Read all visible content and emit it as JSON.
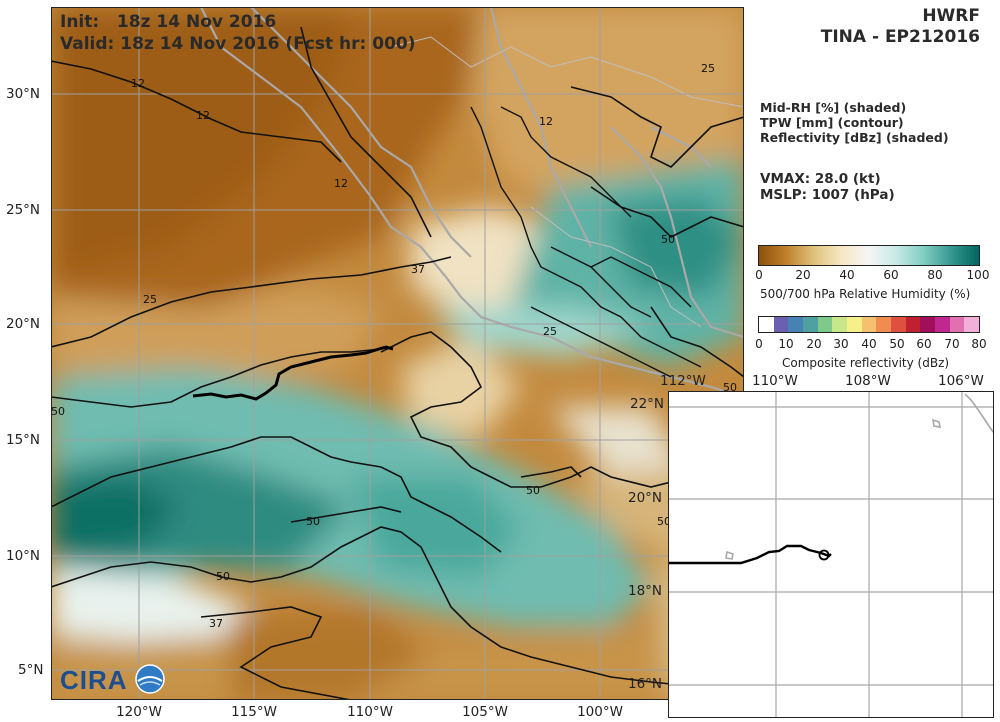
{
  "header": {
    "model": "HWRF",
    "storm": "TINA - EP212016",
    "init": "Init:   18z 14 Nov 2016",
    "valid": "Valid: 18z 14 Nov 2016 (Fcst hr: 000)"
  },
  "fields": {
    "line1": "Mid-RH [%] (shaded)",
    "line2": "TPW [mm] (contour)",
    "line3": "Reflectivity [dBz] (shaded)"
  },
  "storm_info": {
    "vmax": "VMAX:  28.0 (kt)",
    "mslp": "MSLP: 1007 (hPa)"
  },
  "rh_colorbar": {
    "ticks": [
      "0",
      "20",
      "40",
      "60",
      "80",
      "100"
    ],
    "title": "500/700 hPa Relative Humidity (%)",
    "colors": [
      "#8c510a",
      "#bf812d",
      "#dfc27d",
      "#f6e8c3",
      "#f5f5f5",
      "#c7eae5",
      "#80cdc1",
      "#35978f",
      "#01665e"
    ]
  },
  "refl_colorbar": {
    "ticks": [
      "0",
      "10",
      "20",
      "30",
      "40",
      "50",
      "60",
      "70",
      "80"
    ],
    "title": "Composite reflectivity (dBz)",
    "colors": [
      "#ffffff",
      "#6a5fb0",
      "#4682b4",
      "#4fa0a0",
      "#7fc98a",
      "#c8e68a",
      "#f5f08a",
      "#f5c070",
      "#f08c50",
      "#e05040",
      "#c02030",
      "#a0105a",
      "#c02890",
      "#e070b0",
      "#f0b0d8"
    ]
  },
  "main_map": {
    "lat_labels": [
      "30°N",
      "25°N",
      "20°N",
      "15°N",
      "10°N",
      "5°N"
    ],
    "lon_labels": [
      "120°W",
      "115°W",
      "110°W",
      "105°W",
      "100°W"
    ],
    "contour_labels": [
      "12",
      "12",
      "12",
      "12",
      "25",
      "25",
      "37",
      "50",
      "50",
      "50",
      "50",
      "37",
      "50",
      "50",
      "25",
      "50"
    ]
  },
  "inset_map": {
    "lon_labels": [
      "110°W",
      "108°W",
      "106°W"
    ],
    "lat_labels": [
      "20°N",
      "18°N",
      "16°N"
    ],
    "clipped_labels": [
      "112°W",
      "22°N"
    ]
  },
  "logo": {
    "text": "CIRA"
  }
}
